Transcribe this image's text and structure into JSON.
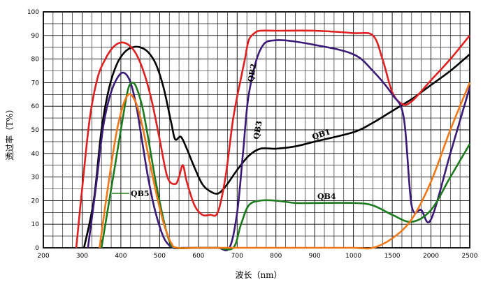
{
  "chart_data": {
    "type": "line",
    "xlabel": "波长（nm）",
    "ylabel": "透过率（T%）",
    "ylim": [
      0,
      100
    ],
    "y_ticks": [
      "0",
      "10",
      "20",
      "30",
      "40",
      "50",
      "60",
      "70",
      "80",
      "90",
      "100"
    ],
    "x_ticks": [
      "200",
      "300",
      "400",
      "500",
      "600",
      "700",
      "800",
      "900",
      "1000",
      "1500",
      "2000",
      "2500"
    ],
    "x_scale": "piecewise: linear 200–1000, compressed 1000–2500",
    "grid": true,
    "legend": "labels placed on curves",
    "series": [
      {
        "name": "QB1",
        "color": "#000000",
        "x": [
          305,
          330,
          350,
          370,
          390,
          410,
          430,
          450,
          470,
          490,
          510,
          530,
          540,
          555,
          570,
          590,
          610,
          630,
          650,
          670,
          700,
          730,
          760,
          800,
          850,
          900,
          1000,
          1250,
          1500,
          1750,
          2000,
          2250,
          2500
        ],
        "y": [
          0,
          20,
          50,
          68,
          78,
          83,
          85,
          85,
          83,
          78,
          68,
          53,
          46,
          47,
          42,
          34,
          27,
          24,
          23,
          26,
          33,
          39,
          42,
          42,
          43,
          45,
          49,
          53,
          58,
          63,
          69,
          75,
          82
        ]
      },
      {
        "name": "QB2",
        "color": "#e02020",
        "x": [
          285,
          300,
          320,
          340,
          360,
          380,
          400,
          420,
          440,
          460,
          480,
          500,
          520,
          540,
          550,
          560,
          570,
          590,
          610,
          630,
          650,
          670,
          690,
          710,
          720,
          730,
          745,
          760,
          800,
          900,
          1000,
          1250,
          1375,
          1500,
          1625,
          1750,
          2000,
          2250,
          2500
        ],
        "y": [
          0,
          25,
          55,
          72,
          80,
          85,
          87,
          86,
          82,
          74,
          62,
          46,
          30,
          27,
          30,
          35,
          28,
          18,
          14,
          14,
          15,
          30,
          55,
          72,
          80,
          88,
          91,
          92,
          92,
          92,
          91,
          90,
          80,
          66,
          61,
          62,
          71,
          80,
          90
        ]
      },
      {
        "name": "QB3",
        "color": "#3c1a78",
        "x": [
          315,
          335,
          355,
          375,
          395,
          410,
          425,
          440,
          455,
          470,
          485,
          500,
          515,
          535,
          560,
          600,
          650,
          680,
          700,
          715,
          730,
          760,
          800,
          900,
          1000,
          1250,
          1500,
          1650,
          1750,
          1875,
          2000,
          2250,
          2500
        ],
        "y": [
          0,
          25,
          52,
          66,
          73,
          74,
          70,
          60,
          45,
          30,
          18,
          9,
          3,
          0,
          0,
          0,
          0,
          0,
          15,
          40,
          65,
          84,
          88,
          86,
          82,
          75,
          65,
          55,
          18,
          16,
          12,
          40,
          68
        ]
      },
      {
        "name": "QB4",
        "color": "#1e7a1e",
        "x": [
          350,
          370,
          390,
          410,
          420,
          430,
          440,
          455,
          470,
          490,
          510,
          525,
          540,
          600,
          650,
          690,
          710,
          730,
          760,
          800,
          850,
          900,
          1000,
          1250,
          1500,
          1750,
          2000,
          2250,
          2500
        ],
        "y": [
          0,
          20,
          40,
          60,
          68,
          70,
          68,
          60,
          47,
          28,
          12,
          3,
          0,
          0,
          0,
          0,
          10,
          18,
          20,
          20,
          19,
          19,
          19,
          18,
          14,
          11,
          16,
          30,
          44
        ]
      },
      {
        "name": "QB5",
        "color": "#f07818",
        "x": [
          345,
          360,
          375,
          390,
          405,
          415,
          425,
          440,
          455,
          470,
          485,
          500,
          515,
          530,
          545,
          600,
          700,
          800,
          900,
          1000,
          1250,
          1500,
          1750,
          2000,
          2250,
          2500
        ],
        "y": [
          0,
          18,
          35,
          50,
          60,
          64,
          65,
          61,
          52,
          40,
          28,
          17,
          8,
          2,
          0,
          0,
          0,
          0,
          0,
          0,
          0,
          4,
          12,
          28,
          50,
          70
        ]
      }
    ],
    "labels": [
      {
        "text": "QB1",
        "series": "QB1"
      },
      {
        "text": "QB2",
        "series": "QB2"
      },
      {
        "text": "QB3",
        "series": "QB3"
      },
      {
        "text": "QB4",
        "series": "QB4"
      },
      {
        "text": "QB5",
        "series": "QB5"
      }
    ]
  }
}
